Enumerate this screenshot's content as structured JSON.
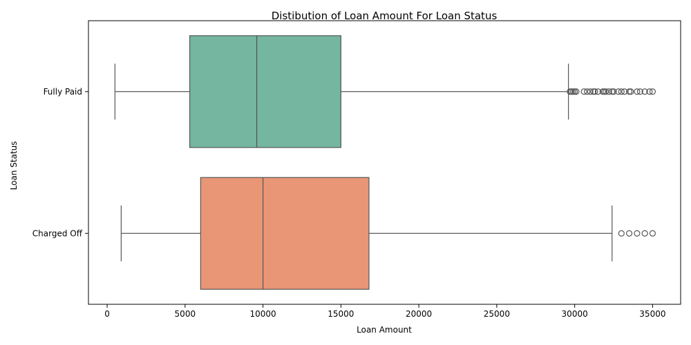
{
  "chart_data": {
    "type": "box",
    "title": "Distibution of Loan Amount For Loan Status",
    "xlabel": "Loan Amount",
    "ylabel": "Loan Status",
    "xlim": [
      -1200,
      36800
    ],
    "xticks": [
      0,
      5000,
      10000,
      15000,
      20000,
      25000,
      30000,
      35000
    ],
    "grid": false,
    "categories": [
      "Fully Paid",
      "Charged Off"
    ],
    "series": [
      {
        "name": "Fully Paid",
        "color": "#74b6a0",
        "whisker_low": 500,
        "q1": 5300,
        "median": 9600,
        "q3": 15000,
        "whisker_high": 29600,
        "outliers": [
          29700,
          29800,
          29900,
          30000,
          30100,
          30600,
          30800,
          31000,
          31200,
          31300,
          31500,
          31800,
          31900,
          32000,
          32200,
          32400,
          32500,
          32800,
          33000,
          33200,
          33500,
          33600,
          34000,
          34200,
          34500,
          34800,
          35000
        ]
      },
      {
        "name": "Charged Off",
        "color": "#e89675",
        "whisker_low": 900,
        "q1": 6000,
        "median": 10000,
        "q3": 16800,
        "whisker_high": 32400,
        "outliers": [
          33000,
          33500,
          34000,
          34500,
          35000
        ]
      }
    ]
  }
}
